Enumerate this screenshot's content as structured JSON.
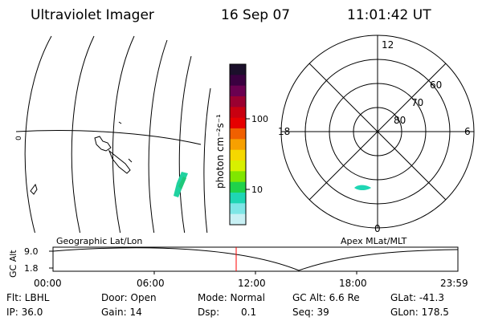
{
  "header": {
    "instrument": "Ultraviolet Imager",
    "date": "16 Sep 07",
    "time": "11:01:42 UT"
  },
  "geo_map": {
    "label": "Geographic Lat/Lon",
    "edge_label": "0"
  },
  "colorbar": {
    "unit_label": "photon cm⁻²s⁻¹",
    "ticks": [
      "100",
      "10"
    ],
    "colors": [
      "#1b0f2b",
      "#3a0040",
      "#6a0050",
      "#9a0030",
      "#c80010",
      "#e60000",
      "#f06000",
      "#f7a000",
      "#f5d800",
      "#d8f000",
      "#80e600",
      "#20d24a",
      "#1fd6b4",
      "#7ee6e6",
      "#c8f0f4"
    ]
  },
  "polar_plot": {
    "label": "Apex MLat/MLT",
    "mlt_labels": {
      "top": "12",
      "left": "18",
      "right": "6",
      "bottom": "0"
    },
    "lat_labels": [
      "60",
      "70",
      "80"
    ]
  },
  "altitude_strip": {
    "ylabel": "GC Alt",
    "yticks": [
      "9.0",
      "1.8"
    ],
    "xticks": [
      "00:00",
      "06:00",
      "12:00",
      "18:00",
      "23:59"
    ],
    "marker_color": "#ff0000"
  },
  "footer": {
    "flt": "Flt: LBHL",
    "door": "Door: Open",
    "mode": "Mode: Normal",
    "gc_alt": "GC Alt: 6.6 Re",
    "glat": "GLat: -41.3",
    "ip": "IP: 36.0",
    "gain": "Gain: 14",
    "dsp_label": "Dsp:",
    "dsp_value": "0.1",
    "seq": "Seq: 39",
    "glon": "GLon: 178.5"
  }
}
